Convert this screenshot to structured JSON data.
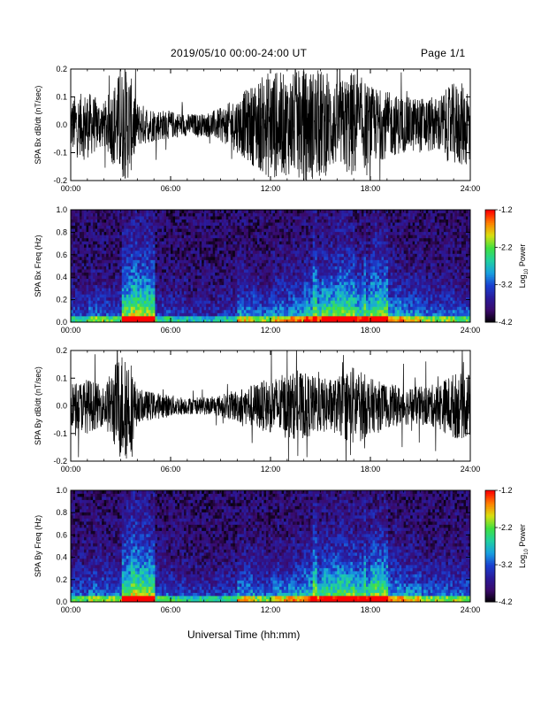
{
  "header": {
    "title": "2019/05/10  00:00-24:00 UT",
    "page": "Page 1/1"
  },
  "footer": {
    "xlabel": "Universal Time (hh:mm)"
  },
  "colors": {
    "trace": "#000000",
    "colormap": [
      "#000000",
      "#3a0a6a",
      "#2a1a9a",
      "#1a40d0",
      "#18a0e0",
      "#20d0a0",
      "#40e040",
      "#d8e010",
      "#ff8000",
      "#ff0000"
    ]
  },
  "chart_data": [
    {
      "type": "line",
      "ylabel": "SPA Bx dB/dt (nT/sec)",
      "ylim": [
        -0.2,
        0.2
      ],
      "yticks": [
        "-0.2",
        "-0.1",
        "0.0",
        "0.1",
        "0.2"
      ],
      "xlim": [
        0,
        24
      ],
      "xticks": [
        "00:00",
        "06:00",
        "12:00",
        "18:00",
        "24:00"
      ],
      "series": [
        {
          "x": [
            0,
            1,
            2,
            3,
            3.5,
            4,
            5,
            6,
            7,
            8,
            9,
            10,
            11,
            12,
            13,
            14,
            15,
            16,
            17,
            18,
            19,
            20,
            21,
            22,
            23,
            24
          ],
          "envelope": [
            0.1,
            0.12,
            0.08,
            0.2,
            0.2,
            0.08,
            0.06,
            0.05,
            0.04,
            0.04,
            0.06,
            0.1,
            0.15,
            0.2,
            0.18,
            0.2,
            0.2,
            0.15,
            0.2,
            0.14,
            0.12,
            0.1,
            0.1,
            0.1,
            0.15,
            0.15
          ]
        }
      ]
    },
    {
      "type": "heatmap",
      "ylabel": "SPA Bx Freq (Hz)",
      "ylim": [
        0.0,
        1.0
      ],
      "yticks": [
        "0.0",
        "0.2",
        "0.4",
        "0.6",
        "0.8",
        "1.0"
      ],
      "xlim": [
        0,
        24
      ],
      "xticks": [
        "00:00",
        "06:00",
        "12:00",
        "18:00",
        "24:00"
      ],
      "colorbar": {
        "label": "Log10 Power",
        "label_base": "Log",
        "label_sub": "10",
        "label_rest": " Power",
        "range": [
          -4.2,
          -1.2
        ],
        "ticks": [
          "-1.2",
          "-2.2",
          "-3.2",
          "-4.2"
        ]
      },
      "activity": [
        0.35,
        0.45,
        0.4,
        0.9,
        0.95,
        0.35,
        0.3,
        0.25,
        0.25,
        0.3,
        0.55,
        0.45,
        0.55,
        0.6,
        0.7,
        0.85,
        0.9,
        0.75,
        0.9,
        0.6,
        0.55,
        0.45,
        0.45,
        0.4,
        0.6
      ]
    },
    {
      "type": "line",
      "ylabel": "SPA By dB/dt (nT/sec)",
      "ylim": [
        -0.2,
        0.2
      ],
      "yticks": [
        "-0.2",
        "-0.1",
        "0.0",
        "0.1",
        "0.2"
      ],
      "xlim": [
        0,
        24
      ],
      "xticks": [
        "00:00",
        "06:00",
        "12:00",
        "18:00",
        "24:00"
      ],
      "series": [
        {
          "x": [
            0,
            1,
            2,
            3,
            3.5,
            4,
            5,
            6,
            7,
            8,
            9,
            10,
            11,
            12,
            13,
            14,
            15,
            16,
            17,
            18,
            19,
            20,
            21,
            22,
            23,
            24
          ],
          "envelope": [
            0.08,
            0.1,
            0.07,
            0.2,
            0.2,
            0.06,
            0.05,
            0.04,
            0.03,
            0.03,
            0.04,
            0.06,
            0.08,
            0.1,
            0.12,
            0.12,
            0.1,
            0.1,
            0.15,
            0.1,
            0.08,
            0.07,
            0.07,
            0.08,
            0.12,
            0.12
          ]
        }
      ]
    },
    {
      "type": "heatmap",
      "ylabel": "SPA By Freq (Hz)",
      "ylim": [
        0.0,
        1.0
      ],
      "yticks": [
        "0.0",
        "0.2",
        "0.4",
        "0.6",
        "0.8",
        "1.0"
      ],
      "xlim": [
        0,
        24
      ],
      "xticks": [
        "00:00",
        "06:00",
        "12:00",
        "18:00",
        "24:00"
      ],
      "colorbar": {
        "label": "Log10 Power",
        "label_base": "Log",
        "label_sub": "10",
        "label_rest": " Power",
        "range": [
          -4.2,
          -1.2
        ],
        "ticks": [
          "-1.2",
          "-2.2",
          "-3.2",
          "-4.2"
        ]
      },
      "activity": [
        0.4,
        0.5,
        0.45,
        0.9,
        0.95,
        0.4,
        0.35,
        0.3,
        0.3,
        0.35,
        0.55,
        0.45,
        0.55,
        0.6,
        0.7,
        0.8,
        0.85,
        0.75,
        0.9,
        0.6,
        0.55,
        0.45,
        0.45,
        0.45,
        0.6
      ]
    }
  ]
}
